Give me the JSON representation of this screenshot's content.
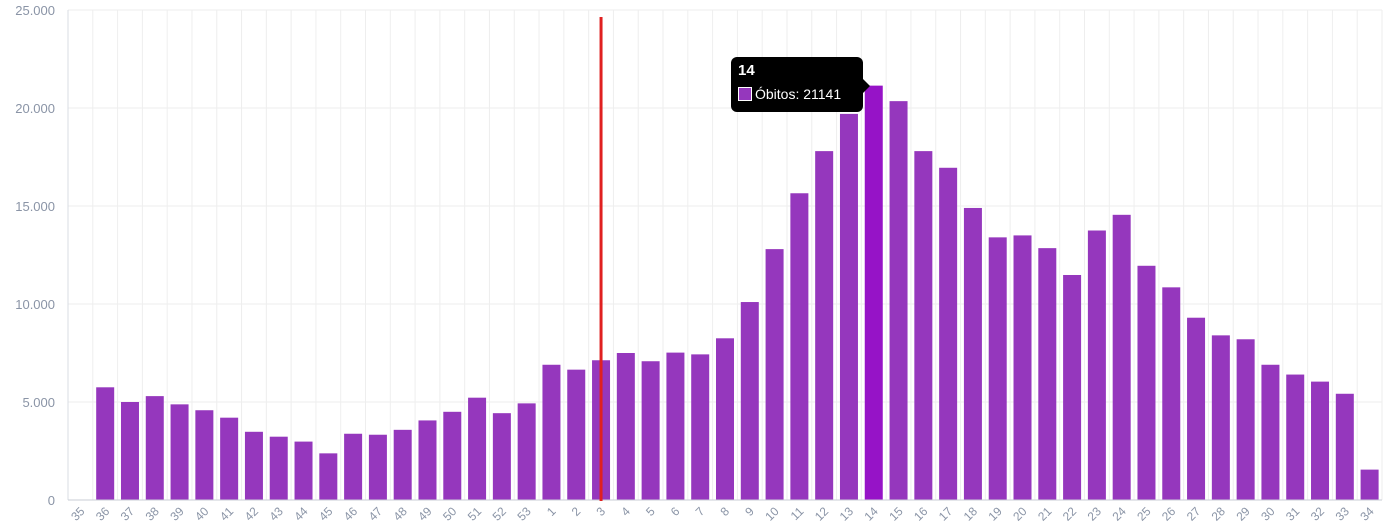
{
  "chart_data": {
    "type": "bar",
    "categories": [
      "35",
      "36",
      "37",
      "38",
      "39",
      "40",
      "41",
      "42",
      "43",
      "44",
      "45",
      "46",
      "47",
      "48",
      "49",
      "50",
      "51",
      "52",
      "53",
      "1",
      "2",
      "3",
      "4",
      "5",
      "6",
      "7",
      "8",
      "9",
      "10",
      "11",
      "12",
      "13",
      "14",
      "15",
      "16",
      "17",
      "18",
      "19",
      "20",
      "21",
      "22",
      "23",
      "24",
      "25",
      "26",
      "27",
      "28",
      "29",
      "30",
      "31",
      "32",
      "33",
      "34"
    ],
    "series": [
      {
        "name": "Óbitos",
        "values": [
          0,
          5750,
          5000,
          5300,
          4880,
          4580,
          4200,
          3480,
          3230,
          2980,
          2380,
          3380,
          3330,
          3580,
          4060,
          4500,
          5220,
          4430,
          4930,
          6900,
          6650,
          7130,
          7500,
          7080,
          7520,
          7430,
          8250,
          10100,
          12800,
          15650,
          17800,
          19700,
          21141,
          20350,
          17800,
          16950,
          14900,
          13400,
          13500,
          12850,
          11480,
          13750,
          14550,
          11950,
          10850,
          9300,
          8400,
          8200,
          6900,
          6400,
          6040,
          5420,
          1550
        ]
      }
    ],
    "ylim": [
      0,
      25000
    ],
    "yticks": [
      0,
      5000,
      10000,
      15000,
      20000,
      25000
    ],
    "ytick_labels": [
      "0",
      "5.000",
      "10.000",
      "15.000",
      "20.000",
      "25.000"
    ],
    "colors": {
      "bar": "#9537bd",
      "bar_highlight": "#9613c7",
      "marker_line": "#e02020",
      "grid": "#eeeeee"
    },
    "highlight_category": "14",
    "marker_line_category": "3",
    "grid": true,
    "title": "",
    "xlabel": "",
    "ylabel": ""
  },
  "tooltip": {
    "title": "14",
    "series_label": "Óbitos: 21141",
    "swatch_color": "#9537bd"
  }
}
